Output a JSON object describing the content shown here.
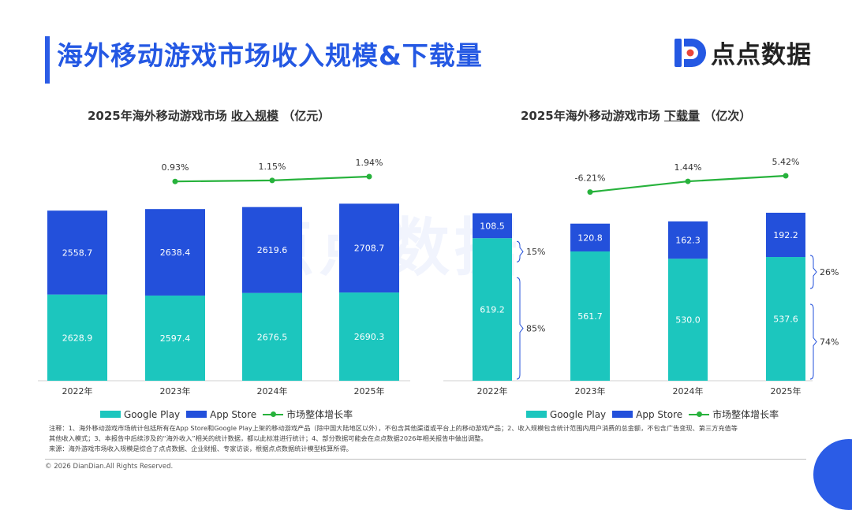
{
  "page": {
    "title": "海外移动游戏市场收入规模&下载量",
    "logo_text": "点点数据",
    "watermark": "点点数据"
  },
  "colors": {
    "google_play": "#1cc6be",
    "app_store": "#2350db",
    "growth": "#27b23c",
    "accent": "#2b5ce6"
  },
  "legend": {
    "google_play": "Google Play",
    "app_store": "App Store",
    "growth": "市场整体增长率"
  },
  "notes": {
    "line1": "注释：1、海外移动游戏市场统计包括所有在App Store和Google Play上架的移动游戏产品（除中国大陆地区以外），不包含其他渠道或平台上的移动游戏产品；2、收入规模包含统计范围内用户消费的总金额，不包含广告变现、第三方充值等",
    "line2": "其他收入模式；3、本报告中后续涉及的“海外收入”相关的统计数据，都以此标准进行统计；4、部分数据可能会在点点数据2026年相关报告中做出调整。",
    "line3": "来源：海外游戏市场收入规模是综合了点点数据、企业财报、专家访谈，根据点点数据统计模型核算所得。"
  },
  "copyright": "© 2026 DianDian.All Rights Reserved.",
  "chart_data": [
    {
      "type": "bar",
      "stacked": true,
      "title_prefix": "2025年海外移动游戏市场 ",
      "title_emph": "收入规模",
      "title_suffix": " （亿元）",
      "categories": [
        "2022年",
        "2023年",
        "2024年",
        "2025年"
      ],
      "series": [
        {
          "name": "Google Play",
          "values": [
            2628.9,
            2597.4,
            2676.5,
            2690.3
          ]
        },
        {
          "name": "App Store",
          "values": [
            2558.7,
            2638.4,
            2619.6,
            2708.7
          ]
        }
      ],
      "growth": {
        "name": "市场整体增长率",
        "categories": [
          "2023年",
          "2024年",
          "2025年"
        ],
        "values": [
          0.93,
          1.15,
          1.94
        ],
        "labels": [
          "0.93%",
          "1.15%",
          "1.94%"
        ]
      },
      "ylim": [
        0,
        5400
      ]
    },
    {
      "type": "bar",
      "stacked": true,
      "title_prefix": "2025年海外移动游戏市场 ",
      "title_emph": "下载量",
      "title_suffix": " （亿次）",
      "categories": [
        "2022年",
        "2023年",
        "2024年",
        "2025年"
      ],
      "series": [
        {
          "name": "Google Play",
          "values": [
            619.2,
            561.7,
            530.0,
            537.6
          ],
          "labels": [
            "619.2",
            "561.7",
            "530.0",
            "537.6"
          ]
        },
        {
          "name": "App Store",
          "values": [
            108.5,
            120.8,
            162.3,
            192.2
          ],
          "labels": [
            "108.5",
            "120.8",
            "162.3",
            "192.2"
          ]
        }
      ],
      "growth": {
        "name": "市场整体增长率",
        "categories": [
          "2023年",
          "2024年",
          "2025年"
        ],
        "values": [
          -6.21,
          1.44,
          5.42
        ],
        "labels": [
          "-6.21%",
          "1.44%",
          "5.42%"
        ]
      },
      "annotations": [
        {
          "category": "2022年",
          "top_share": "15%",
          "bottom_share": "85%"
        },
        {
          "category": "2025年",
          "top_share": "26%",
          "bottom_share": "74%"
        }
      ],
      "ylim": [
        0,
        750
      ]
    }
  ]
}
